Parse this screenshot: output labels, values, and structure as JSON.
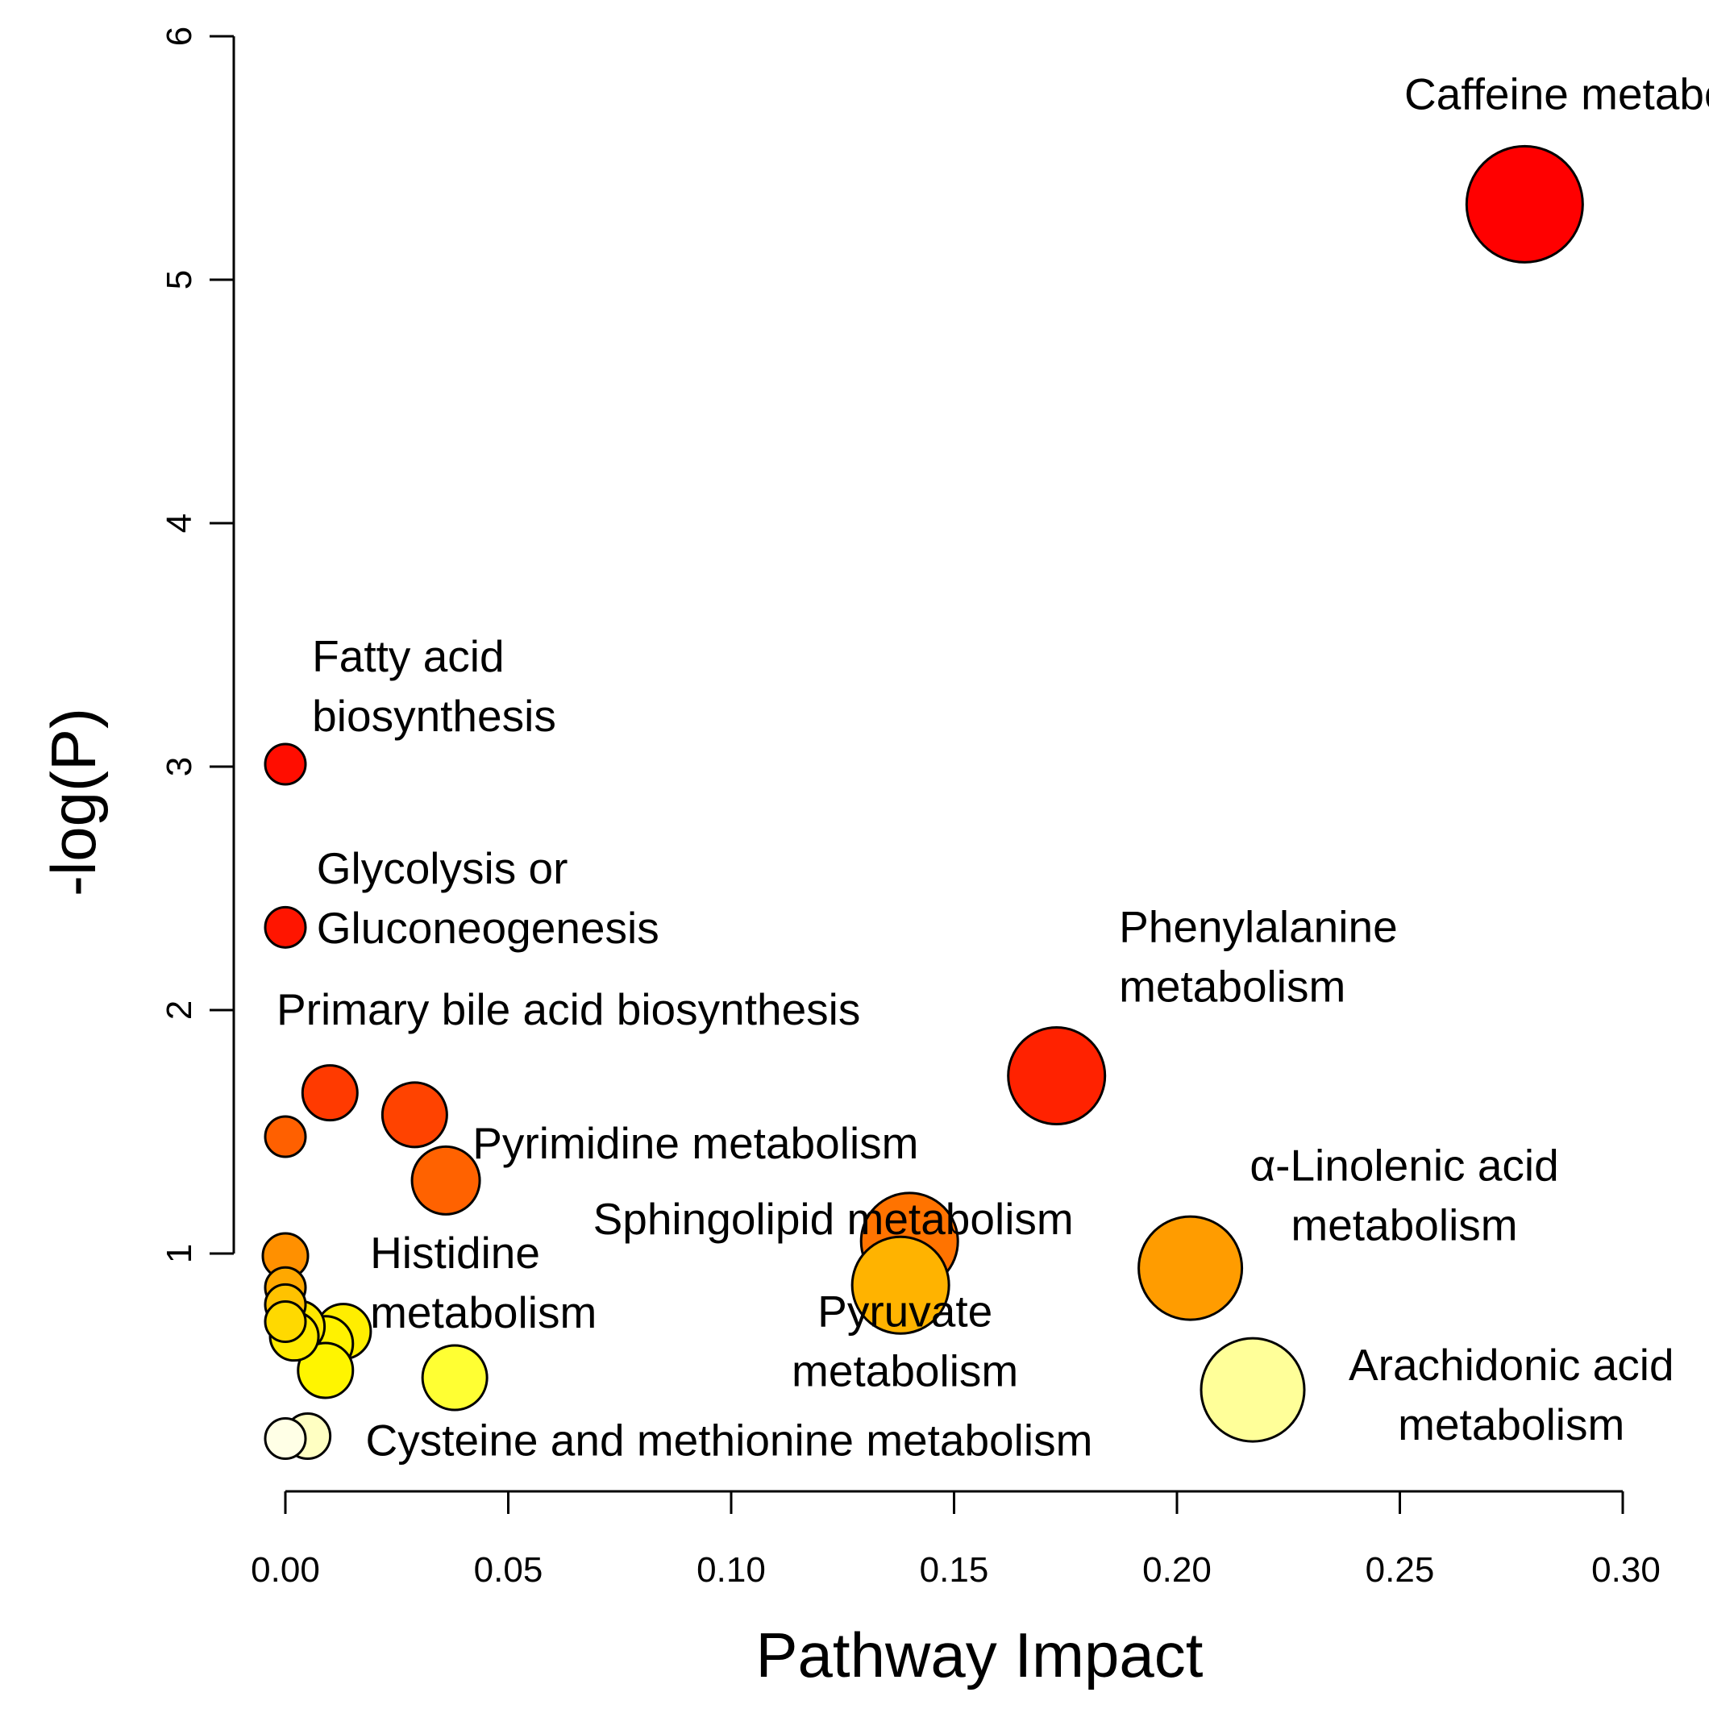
{
  "chart_data": {
    "type": "scatter",
    "title": "",
    "xlabel": "Pathway Impact",
    "ylabel": "-log(P)",
    "xlim": [
      0.0,
      0.3
    ],
    "ylim": [
      0,
      6
    ],
    "x_ticks": [
      "0.00",
      "0.05",
      "0.10",
      "0.15",
      "0.20",
      "0.25",
      "0.30"
    ],
    "x_tick_values": [
      0.0,
      0.05,
      0.1,
      0.15,
      0.2,
      0.25,
      0.3
    ],
    "y_ticks": [
      "1",
      "2",
      "3",
      "4",
      "5",
      "6"
    ],
    "y_tick_values": [
      1,
      2,
      3,
      4,
      5,
      6
    ],
    "points": [
      {
        "x": 0.278,
        "y": 5.31,
        "size": 6.0,
        "color": "#ff0000"
      },
      {
        "x": 0.173,
        "y": 1.73,
        "size": 4.8,
        "color": "#ff2200"
      },
      {
        "x": 0.203,
        "y": 0.94,
        "size": 5.2,
        "color": "#ff9c00"
      },
      {
        "x": 0.14,
        "y": 1.05,
        "size": 4.8,
        "color": "#ff7300"
      },
      {
        "x": 0.138,
        "y": 0.87,
        "size": 4.8,
        "color": "#ffb300"
      },
      {
        "x": 0.217,
        "y": 0.44,
        "size": 5.2,
        "color": "#ffff99"
      },
      {
        "x": 0.0,
        "y": 3.01,
        "size": 1.3,
        "color": "#ff0d00"
      },
      {
        "x": 0.0,
        "y": 2.34,
        "size": 1.3,
        "color": "#ff1500"
      },
      {
        "x": 0.01,
        "y": 1.66,
        "size": 2.2,
        "color": "#ff3a00"
      },
      {
        "x": 0.029,
        "y": 1.57,
        "size": 2.8,
        "color": "#ff4300"
      },
      {
        "x": 0.0,
        "y": 1.48,
        "size": 1.3,
        "color": "#ff6000"
      },
      {
        "x": 0.036,
        "y": 1.3,
        "size": 3.0,
        "color": "#ff6200"
      },
      {
        "x": 0.0,
        "y": 0.99,
        "size": 1.6,
        "color": "#ff9000"
      },
      {
        "x": 0.0,
        "y": 0.86,
        "size": 1.3,
        "color": "#ffa800"
      },
      {
        "x": 0.0,
        "y": 0.79,
        "size": 1.3,
        "color": "#ffc200"
      },
      {
        "x": 0.0,
        "y": 0.72,
        "size": 1.3,
        "color": "#ffd900"
      },
      {
        "x": 0.003,
        "y": 0.7,
        "size": 2.0,
        "color": "#ffe800"
      },
      {
        "x": 0.013,
        "y": 0.68,
        "size": 2.2,
        "color": "#ffee00"
      },
      {
        "x": 0.002,
        "y": 0.66,
        "size": 1.8,
        "color": "#ffea00"
      },
      {
        "x": 0.009,
        "y": 0.63,
        "size": 2.2,
        "color": "#fff200"
      },
      {
        "x": 0.009,
        "y": 0.52,
        "size": 2.2,
        "color": "#fff500"
      },
      {
        "x": 0.038,
        "y": 0.49,
        "size": 2.8,
        "color": "#ffff33"
      },
      {
        "x": 0.005,
        "y": 0.25,
        "size": 1.6,
        "color": "#ffffc2"
      },
      {
        "x": 0.0,
        "y": 0.24,
        "size": 1.3,
        "color": "#ffffe6"
      }
    ],
    "annotations": [
      {
        "lines": [
          "Caffeine metabolism"
        ],
        "x": 0.251,
        "y": 5.7,
        "anchor": "start"
      },
      {
        "lines": [
          "Fatty acid",
          "biosynthesis"
        ],
        "x": 0.006,
        "y": 3.39,
        "anchor": "start"
      },
      {
        "lines": [
          "Glycolysis or",
          "Gluconeogenesis"
        ],
        "x": 0.007,
        "y": 2.52,
        "anchor": "start"
      },
      {
        "lines": [
          "Phenylalanine",
          "metabolism"
        ],
        "x": 0.187,
        "y": 2.28,
        "anchor": "start"
      },
      {
        "lines": [
          "Primary bile acid biosynthesis"
        ],
        "x": -0.002,
        "y": 1.94,
        "anchor": "start"
      },
      {
        "lines": [
          "Pyrimidine metabolism"
        ],
        "x": 0.042,
        "y": 1.39,
        "anchor": "start"
      },
      {
        "lines": [
          "α-Linolenic acid",
          "metabolism"
        ],
        "x": 0.251,
        "y": 1.3,
        "anchor": "middle"
      },
      {
        "lines": [
          "Sphingolipid metabolism"
        ],
        "x": 0.069,
        "y": 1.08,
        "anchor": "start"
      },
      {
        "lines": [
          "Histidine",
          "metabolism"
        ],
        "x": 0.019,
        "y": 0.94,
        "anchor": "start"
      },
      {
        "lines": [
          "Pyruvate",
          "metabolism"
        ],
        "x": 0.139,
        "y": 0.7,
        "anchor": "middle"
      },
      {
        "lines": [
          "Arachidonic acid",
          "metabolism"
        ],
        "x": 0.275,
        "y": 0.48,
        "anchor": "middle"
      },
      {
        "lines": [
          "Cysteine and methionine metabolism"
        ],
        "x": 0.018,
        "y": 0.17,
        "anchor": "start"
      }
    ]
  }
}
